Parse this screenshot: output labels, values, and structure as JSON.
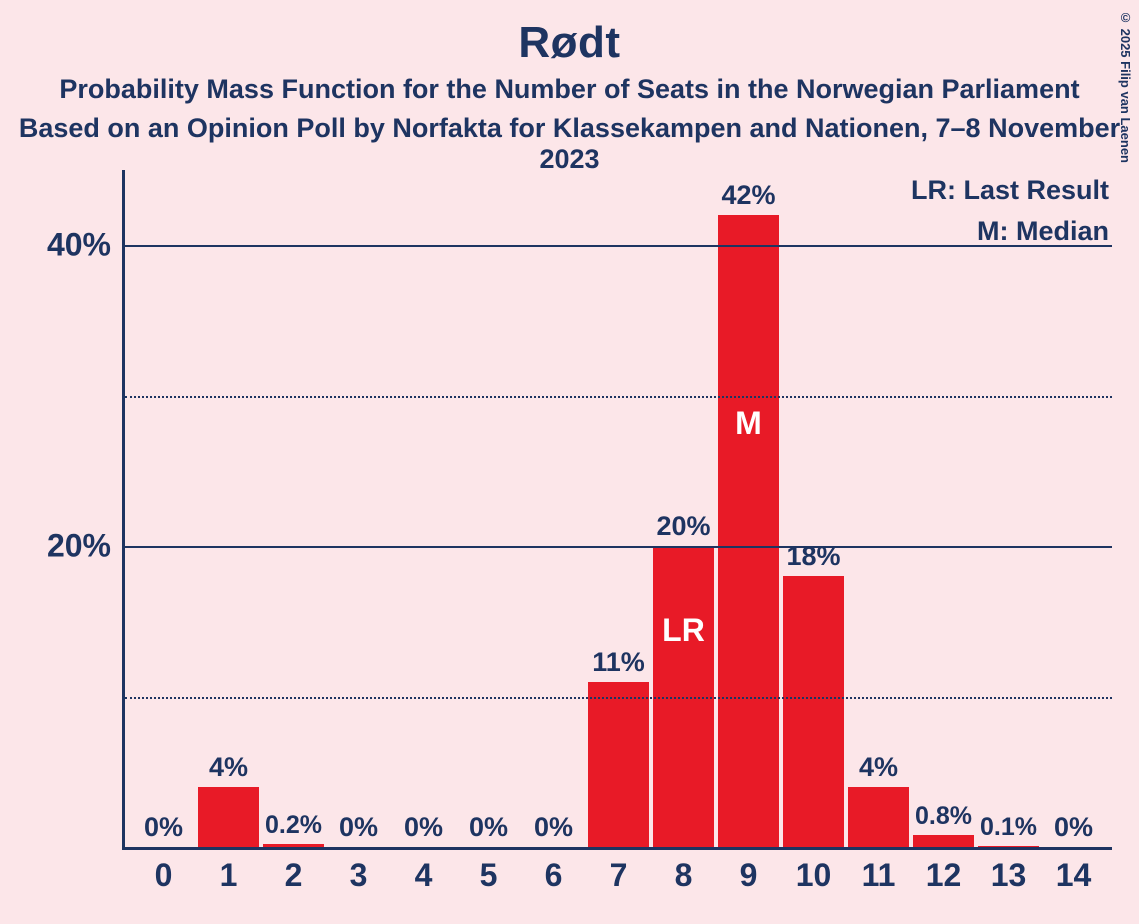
{
  "title": "Rødt",
  "subtitle1": "Probability Mass Function for the Number of Seats in the Norwegian Parliament",
  "subtitle2": "Based on an Opinion Poll by Norfakta for Klassekampen and Nationen, 7–8 November 2023",
  "legend": {
    "lr": "LR: Last Result",
    "m": "M: Median"
  },
  "copyright": "© 2025 Filip van Laenen",
  "chart": {
    "type": "bar",
    "background_color": "#fce6e9",
    "bar_color": "#e81a27",
    "axis_color": "#1e3461",
    "text_color": "#1e3461",
    "inner_label_color": "#ffffff",
    "ylim_max": 45,
    "y_ticks": [
      {
        "value": 40,
        "label": "40%",
        "style": "solid",
        "show_label": true
      },
      {
        "value": 30,
        "label": "",
        "style": "dotted",
        "show_label": false
      },
      {
        "value": 20,
        "label": "20%",
        "style": "solid",
        "show_label": true
      },
      {
        "value": 10,
        "label": "",
        "style": "dotted",
        "show_label": false
      }
    ],
    "categories": [
      "0",
      "1",
      "2",
      "3",
      "4",
      "5",
      "6",
      "7",
      "8",
      "9",
      "10",
      "11",
      "12",
      "13",
      "14"
    ],
    "bars": [
      {
        "value": 0,
        "label": "0%",
        "label_fontsize": 27,
        "inner_label": "",
        "inner_label_top_pct": 0
      },
      {
        "value": 4,
        "label": "4%",
        "label_fontsize": 27,
        "inner_label": "",
        "inner_label_top_pct": 0
      },
      {
        "value": 0.2,
        "label": "0.2%",
        "label_fontsize": 25,
        "inner_label": "",
        "inner_label_top_pct": 0
      },
      {
        "value": 0,
        "label": "0%",
        "label_fontsize": 27,
        "inner_label": "",
        "inner_label_top_pct": 0
      },
      {
        "value": 0,
        "label": "0%",
        "label_fontsize": 27,
        "inner_label": "",
        "inner_label_top_pct": 0
      },
      {
        "value": 0,
        "label": "0%",
        "label_fontsize": 27,
        "inner_label": "",
        "inner_label_top_pct": 0
      },
      {
        "value": 0,
        "label": "0%",
        "label_fontsize": 27,
        "inner_label": "",
        "inner_label_top_pct": 0
      },
      {
        "value": 11,
        "label": "11%",
        "label_fontsize": 27,
        "inner_label": "",
        "inner_label_top_pct": 0
      },
      {
        "value": 20,
        "label": "20%",
        "label_fontsize": 27,
        "inner_label": "LR",
        "inner_label_top_pct": 22
      },
      {
        "value": 42,
        "label": "42%",
        "label_fontsize": 27,
        "inner_label": "M",
        "inner_label_top_pct": 30
      },
      {
        "value": 18,
        "label": "18%",
        "label_fontsize": 27,
        "inner_label": "",
        "inner_label_top_pct": 0
      },
      {
        "value": 4,
        "label": "4%",
        "label_fontsize": 27,
        "inner_label": "",
        "inner_label_top_pct": 0
      },
      {
        "value": 0.8,
        "label": "0.8%",
        "label_fontsize": 25,
        "inner_label": "",
        "inner_label_top_pct": 0
      },
      {
        "value": 0.1,
        "label": "0.1%",
        "label_fontsize": 25,
        "inner_label": "",
        "inner_label_top_pct": 0
      },
      {
        "value": 0,
        "label": "0%",
        "label_fontsize": 27,
        "inner_label": "",
        "inner_label_top_pct": 0
      }
    ]
  }
}
